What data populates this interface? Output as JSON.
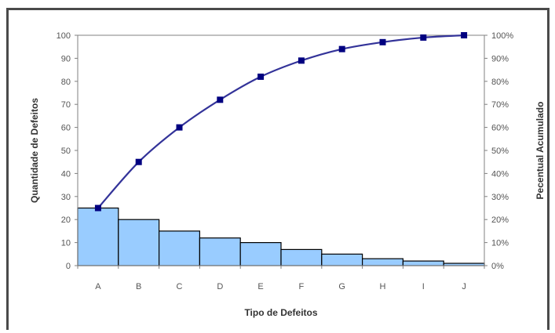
{
  "chart_data": {
    "type": "bar",
    "title": "",
    "xlabel": "Tipo de Defeitos",
    "ylabel": "Quantidade de Defeitos",
    "y2label": "Pecentual Acumulado",
    "categories": [
      "A",
      "B",
      "C",
      "D",
      "E",
      "F",
      "G",
      "H",
      "I",
      "J"
    ],
    "ylim": [
      0,
      100
    ],
    "y2lim": [
      0,
      100
    ],
    "yticks": [
      "0",
      "10",
      "20",
      "30",
      "40",
      "50",
      "60",
      "70",
      "80",
      "90",
      "100"
    ],
    "y2ticks": [
      "0%",
      "10%",
      "20%",
      "30%",
      "40%",
      "50%",
      "60%",
      "70%",
      "80%",
      "90%",
      "100%"
    ],
    "series": [
      {
        "values": [
          25,
          20,
          15,
          12,
          10,
          7,
          5,
          3,
          2,
          1
        ]
      },
      {
        "values": [
          25,
          45,
          60,
          72,
          82,
          89,
          94,
          97,
          99,
          100
        ]
      }
    ],
    "colors": {
      "bar_fill": "#99ccff",
      "bar_stroke": "#000000",
      "line": "#333399",
      "marker": "#000080",
      "axis": "#808080"
    },
    "grid": false,
    "legend": "none"
  }
}
